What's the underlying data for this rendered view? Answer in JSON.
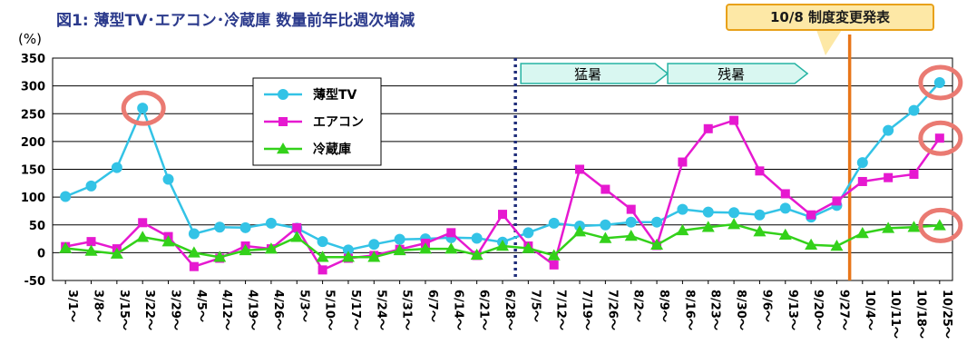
{
  "title": "図1: 薄型TV･エアコン･冷蔵庫 数量前年比週次増減",
  "unit_label": "(%)",
  "announcement": "10/8 制度変更発表",
  "periods": [
    {
      "label": "猛暑",
      "from": "7/5～",
      "to": "8/9～"
    },
    {
      "label": "残暑",
      "from": "8/9～",
      "to": "9/20～"
    }
  ],
  "colors": {
    "tv": "#33c3e6",
    "aircon": "#e619d0",
    "fridge": "#33d11a",
    "highlight_circle": "#ea7a72",
    "announce_line": "#e8761a",
    "divider": "#1f2d7a",
    "period_fill": "#d9f7f1",
    "period_stroke": "#26b3a3"
  },
  "chart_data": {
    "type": "line",
    "title": "図1: 薄型TV･エアコン･冷蔵庫 数量前年比週次増減",
    "ylabel": "(%)",
    "ylim": [
      -50,
      350
    ],
    "yticks": [
      -50,
      0,
      50,
      100,
      150,
      200,
      250,
      300,
      350
    ],
    "grid": true,
    "legend_position": "top-left",
    "categories": [
      "3/1～",
      "3/8～",
      "3/15～",
      "3/22～",
      "3/29～",
      "4/5～",
      "4/12～",
      "4/19～",
      "4/26～",
      "5/3～",
      "5/10～",
      "5/17～",
      "5/24～",
      "5/31～",
      "6/7～",
      "6/14～",
      "6/21～",
      "6/28～",
      "7/5～",
      "7/12～",
      "7/19～",
      "7/26～",
      "8/2～",
      "8/9～",
      "8/16～",
      "8/23～",
      "8/30～",
      "9/6～",
      "9/13～",
      "9/20～",
      "9/27～",
      "10/4～",
      "10/11～",
      "10/18～",
      "10/25～"
    ],
    "series": [
      {
        "name": "薄型TV",
        "values": [
          101,
          120,
          153,
          260,
          132,
          34,
          46,
          45,
          53,
          44,
          20,
          5,
          15,
          24,
          25,
          27,
          26,
          19,
          36,
          53,
          48,
          50,
          55,
          55,
          78,
          73,
          72,
          68,
          80,
          64,
          85,
          162,
          220,
          256,
          306
        ]
      },
      {
        "name": "エアコン",
        "values": [
          11,
          20,
          7,
          54,
          29,
          -25,
          -10,
          12,
          7,
          45,
          -31,
          -10,
          -5,
          6,
          17,
          36,
          -5,
          69,
          12,
          -22,
          150,
          114,
          78,
          13,
          163,
          223,
          238,
          147,
          106,
          68,
          93,
          128,
          135,
          141,
          206
        ]
      },
      {
        "name": "冷蔵庫",
        "values": [
          8,
          3,
          -2,
          28,
          20,
          0,
          -8,
          4,
          7,
          28,
          -8,
          -8,
          -8,
          4,
          7,
          7,
          -4,
          12,
          8,
          -5,
          38,
          26,
          30,
          14,
          40,
          46,
          51,
          38,
          32,
          14,
          12,
          35,
          44,
          46,
          49
        ]
      }
    ],
    "highlighted_points": [
      {
        "series": "薄型TV",
        "category": "3/22～"
      },
      {
        "series": "薄型TV",
        "category": "10/25～"
      },
      {
        "series": "エアコン",
        "category": "10/25～"
      },
      {
        "series": "冷蔵庫",
        "category": "10/25～"
      }
    ],
    "markers": {
      "dotted_divider_between": [
        "6/28～",
        "7/5～"
      ],
      "announcement_line_between": [
        "9/27～",
        "10/4～"
      ]
    }
  }
}
